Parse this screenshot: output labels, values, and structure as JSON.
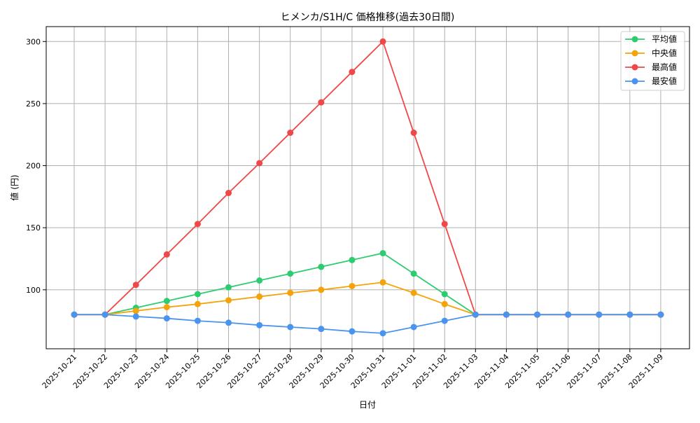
{
  "chart_data": {
    "type": "line",
    "title": "ヒメンカ/S1H/C 価格推移(過去30日間)",
    "xlabel": "日付",
    "ylabel": "値 (円)",
    "categories": [
      "2025-10-21",
      "2025-10-22",
      "2025-10-23",
      "2025-10-24",
      "2025-10-25",
      "2025-10-26",
      "2025-10-27",
      "2025-10-28",
      "2025-10-29",
      "2025-10-30",
      "2025-10-31",
      "2025-11-01",
      "2025-11-02",
      "2025-11-03",
      "2025-11-04",
      "2025-11-05",
      "2025-11-06",
      "2025-11-07",
      "2025-11-08",
      "2025-11-09"
    ],
    "ylim": [
      52.5,
      312
    ],
    "yticks": [
      100,
      150,
      200,
      250,
      300
    ],
    "grid": true,
    "legend_position": "top-right",
    "series": [
      {
        "name": "平均値",
        "color": "#2ecc71",
        "values": [
          80,
          80,
          85.5,
          91,
          96.5,
          102,
          107.5,
          113,
          118.5,
          124,
          129.5,
          113,
          96.5,
          80,
          80,
          80,
          80,
          80,
          80,
          80
        ]
      },
      {
        "name": "中央値",
        "color": "#f5a30a",
        "values": [
          80,
          80,
          83,
          86,
          88.5,
          91.5,
          94.5,
          97.5,
          100,
          103,
          106,
          97.5,
          88.5,
          80,
          80,
          80,
          80,
          80,
          80,
          80
        ]
      },
      {
        "name": "最高値",
        "color": "#f04848",
        "values": [
          80,
          80,
          104,
          128.5,
          153,
          178,
          202,
          226.5,
          251,
          275.5,
          300,
          226.5,
          153,
          80,
          80,
          80,
          80,
          80,
          80,
          80
        ]
      },
      {
        "name": "最安値",
        "color": "#4a94f0",
        "values": [
          80,
          80,
          78.5,
          77,
          75,
          73.5,
          71.5,
          70,
          68.5,
          66.5,
          65,
          70,
          75,
          80,
          80,
          80,
          80,
          80,
          80,
          80
        ]
      }
    ]
  }
}
